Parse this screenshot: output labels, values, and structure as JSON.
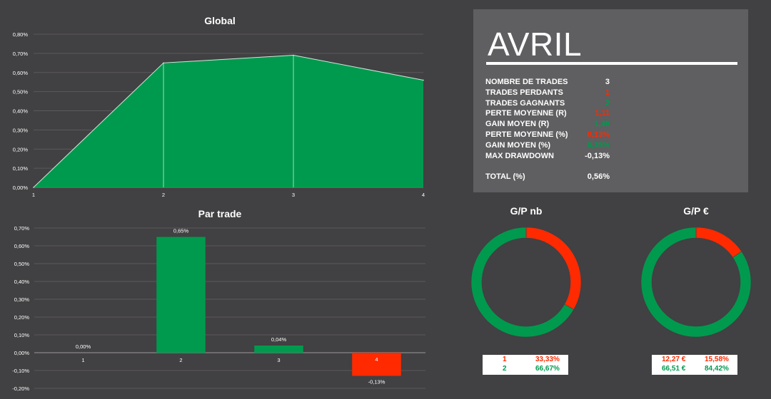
{
  "colors": {
    "green": "#009a4e",
    "red": "#ff2a00",
    "grid": "#5a595b",
    "text": "#ffffff"
  },
  "chart_data": [
    {
      "type": "area",
      "title": "Global",
      "x": [
        "1",
        "2",
        "3",
        "4"
      ],
      "values": [
        0.0,
        0.65,
        0.69,
        0.56
      ],
      "ylim": [
        0,
        0.8
      ],
      "yticks": [
        "0,00%",
        "0,10%",
        "0,20%",
        "0,30%",
        "0,40%",
        "0,50%",
        "0,60%",
        "0,70%",
        "0,80%"
      ],
      "grid": true
    },
    {
      "type": "bar",
      "title": "Par trade",
      "categories": [
        "1",
        "2",
        "3",
        "4"
      ],
      "values": [
        0.0,
        0.65,
        0.04,
        -0.13
      ],
      "data_labels": [
        "0,00%",
        "0,65%",
        "0,04%",
        "-0,13%"
      ],
      "ylim": [
        -0.2,
        0.7
      ],
      "yticks": [
        "-0,20%",
        "-0,10%",
        "0,00%",
        "0,10%",
        "0,20%",
        "0,30%",
        "0,40%",
        "0,50%",
        "0,60%",
        "0,70%"
      ],
      "grid": true
    },
    {
      "type": "pie",
      "title": "G/P nb",
      "labels": [
        "1",
        "2"
      ],
      "values": [
        33.33,
        66.67
      ],
      "percent_labels": [
        "33,33%",
        "66,67%"
      ],
      "colors": [
        "#ff2a00",
        "#009a4e"
      ]
    },
    {
      "type": "pie",
      "title": "G/P €",
      "labels": [
        "12,27 €",
        "66,51 €"
      ],
      "values": [
        15.58,
        84.42
      ],
      "percent_labels": [
        "15,58%",
        "84,42%"
      ],
      "colors": [
        "#ff2a00",
        "#009a4e"
      ]
    }
  ],
  "summary": {
    "title": "AVRIL",
    "rows": [
      {
        "label": "NOMBRE DE TRADES",
        "value": "3",
        "color": "#ffffff"
      },
      {
        "label": "TRADES PERDANTS",
        "value": "1",
        "color": "#ff2a00"
      },
      {
        "label": "TRADES GAGNANTS",
        "value": "2",
        "color": "#009a4e"
      },
      {
        "label": "PERTE MOYENNE (R)",
        "value": "1,11",
        "color": "#ff2a00"
      },
      {
        "label": "GAIN MOYEN (R)",
        "value": "1,48",
        "color": "#009a4e"
      },
      {
        "label": "PERTE MOYENNE (%)",
        "value": "0,13%",
        "color": "#ff2a00"
      },
      {
        "label": "GAIN MOYEN (%)",
        "value": "0,35%",
        "color": "#009a4e"
      },
      {
        "label": "MAX DRAWDOWN",
        "value": "-0,13%",
        "color": "#ffffff"
      },
      {
        "label": "TOTAL (%)",
        "value": "0,56%",
        "color": "#ffffff"
      }
    ]
  }
}
